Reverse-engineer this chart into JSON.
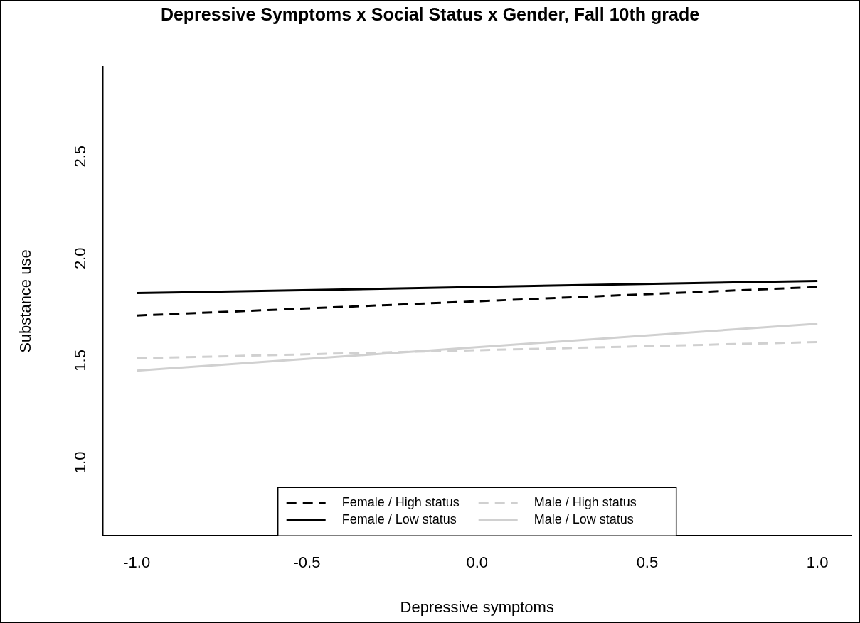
{
  "chart_data": {
    "type": "line",
    "title": "Depressive Symptoms x Social Status x Gender, Fall 10th grade",
    "xlabel": "Depressive symptoms",
    "ylabel": "Substance use",
    "x": [
      -1,
      1
    ],
    "series": [
      {
        "name": "Female / High status",
        "color": "#000000",
        "line_style": "dashed",
        "values": [
          1.72,
          1.86
        ]
      },
      {
        "name": "Female / Low status",
        "color": "#000000",
        "line_style": "solid",
        "values": [
          1.83,
          1.89
        ]
      },
      {
        "name": "Male / High status",
        "color": "#d0d0d0",
        "line_style": "dashed",
        "values": [
          1.51,
          1.59
        ]
      },
      {
        "name": "Male / Low status",
        "color": "#d0d0d0",
        "line_style": "solid",
        "values": [
          1.45,
          1.68
        ]
      }
    ],
    "xlim": [
      -1.1,
      1.1
    ],
    "xticks": [
      {
        "value": -1,
        "label": "-1.0"
      },
      {
        "value": -0.5,
        "label": "-0.5"
      },
      {
        "value": 0,
        "label": "0.0"
      },
      {
        "value": 0.5,
        "label": "0.5"
      },
      {
        "value": 1,
        "label": "1.0"
      }
    ],
    "ylim": [
      0.64,
      2.94
    ],
    "yticks": [
      {
        "value": 1,
        "label": "1.0"
      },
      {
        "value": 1.5,
        "label": "1.5"
      },
      {
        "value": 2,
        "label": "2.0"
      },
      {
        "value": 2.5,
        "label": "2.5"
      }
    ],
    "grid": false,
    "legend": "bottom",
    "marker": "none"
  }
}
